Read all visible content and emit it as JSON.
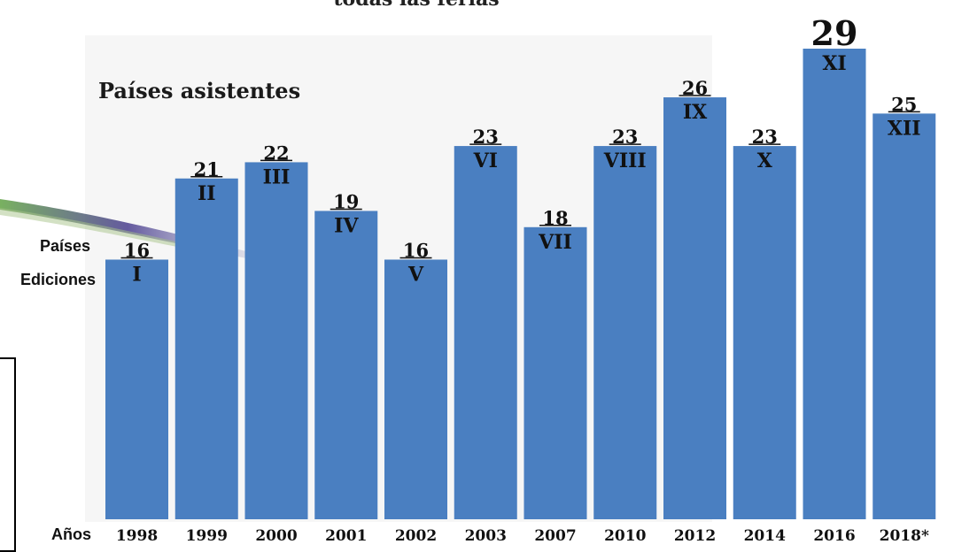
{
  "header": {
    "top_text": "todas las ferias"
  },
  "labels": {
    "paises": "Países",
    "ediciones": "Ediciones",
    "anos": "Años"
  },
  "colors": {
    "bar": "#4a7fc1",
    "plot_bg": "#f6f6f6"
  },
  "chart_data": {
    "type": "bar",
    "title": "Países asistentes",
    "categories": [
      "1998",
      "1999",
      "2000",
      "2001",
      "2002",
      "2003",
      "2007",
      "2010",
      "2012",
      "2014",
      "2016",
      "2018*"
    ],
    "values": [
      16,
      21,
      22,
      19,
      16,
      23,
      18,
      23,
      26,
      23,
      29,
      25
    ],
    "editions": [
      "I",
      "II",
      "III",
      "IV",
      "V",
      "VI",
      "VII",
      "VIII",
      "IX",
      "X",
      "XI",
      "XII"
    ],
    "highlight_index": 10,
    "xlabel": "Años",
    "ylabel": "",
    "grid": false
  }
}
